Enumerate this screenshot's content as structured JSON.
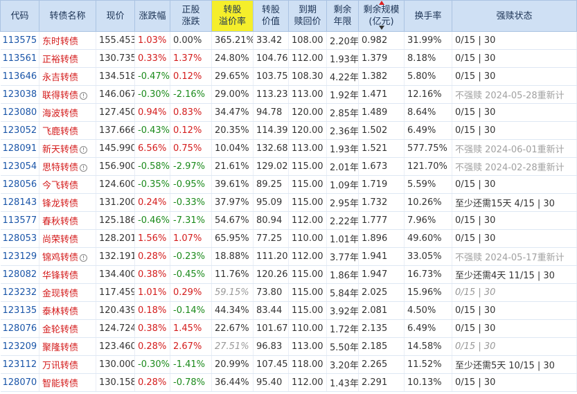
{
  "headers": {
    "code": "代码",
    "name": "转债名称",
    "price": "现价",
    "change": "涨跌幅",
    "stock_change": [
      "正股",
      "涨跌"
    ],
    "premium": [
      "转股",
      "溢价率"
    ],
    "conv_value": [
      "转股",
      "价值"
    ],
    "redeem_price": [
      "到期",
      "赎回价"
    ],
    "remaining_years": [
      "剩余",
      "年限"
    ],
    "remaining_scale": [
      "剩余规模",
      "(亿元)"
    ],
    "turnover": "换手率",
    "force_redeem": "强赎状态"
  },
  "rows": [
    {
      "code": "113575",
      "name": "东时转债",
      "info": false,
      "price": "155.453",
      "change": "1.03%",
      "cdir": "up",
      "stock": "0.00%",
      "sdir": "flat",
      "premium": "365.21%",
      "pit": false,
      "value": "33.42",
      "redeem": "108.00",
      "years": "2.20年",
      "scale": "0.982",
      "turnover": "31.99%",
      "status": "0/15 | 30",
      "status2": "",
      "sgray": false
    },
    {
      "code": "113561",
      "name": "正裕转债",
      "info": false,
      "price": "130.735",
      "change": "0.33%",
      "cdir": "up",
      "stock": "1.37%",
      "sdir": "up",
      "premium": "24.80%",
      "pit": false,
      "value": "104.76",
      "redeem": "112.00",
      "years": "1.93年",
      "scale": "1.379",
      "turnover": "8.18%",
      "status": "0/15 | 30",
      "status2": "",
      "sgray": false
    },
    {
      "code": "113646",
      "name": "永吉转债",
      "info": false,
      "price": "134.518",
      "change": "-0.47%",
      "cdir": "down",
      "stock": "0.12%",
      "sdir": "up",
      "premium": "29.65%",
      "pit": false,
      "value": "103.75",
      "redeem": "108.30",
      "years": "4.22年",
      "scale": "1.382",
      "turnover": "5.80%",
      "status": "0/15 | 30",
      "status2": "",
      "sgray": false
    },
    {
      "code": "123038",
      "name": "联得转债",
      "info": true,
      "price": "146.067",
      "change": "-0.30%",
      "cdir": "down",
      "stock": "-2.16%",
      "sdir": "down",
      "premium": "29.00%",
      "pit": false,
      "value": "113.23",
      "redeem": "113.00",
      "years": "1.92年",
      "scale": "1.471",
      "turnover": "12.16%",
      "status": "不强赎 2024-05-28重新计",
      "status2": "",
      "sgray": true
    },
    {
      "code": "123080",
      "name": "海波转债",
      "info": false,
      "price": "127.450",
      "change": "0.94%",
      "cdir": "up",
      "stock": "0.83%",
      "sdir": "up",
      "premium": "34.47%",
      "pit": false,
      "value": "94.78",
      "redeem": "120.00",
      "years": "2.85年",
      "scale": "1.489",
      "turnover": "8.64%",
      "status": "0/15 | 30",
      "status2": "",
      "sgray": false
    },
    {
      "code": "123052",
      "name": "飞鹿转债",
      "info": false,
      "price": "137.666",
      "change": "-0.43%",
      "cdir": "down",
      "stock": "0.12%",
      "sdir": "up",
      "premium": "20.35%",
      "pit": false,
      "value": "114.39",
      "redeem": "120.00",
      "years": "2.36年",
      "scale": "1.502",
      "turnover": "6.49%",
      "status": "0/15 | 30",
      "status2": "",
      "sgray": false
    },
    {
      "code": "128091",
      "name": "新天转债",
      "info": true,
      "price": "145.990",
      "change": "6.56%",
      "cdir": "up",
      "stock": "0.75%",
      "sdir": "up",
      "premium": "10.04%",
      "pit": false,
      "value": "132.68",
      "redeem": "113.00",
      "years": "1.93年",
      "scale": "1.521",
      "turnover": "577.75%",
      "status": "不强赎 2024-06-01重新计",
      "status2": "",
      "sgray": true
    },
    {
      "code": "123054",
      "name": "思特转债",
      "info": true,
      "price": "156.900",
      "change": "-0.58%",
      "cdir": "down",
      "stock": "-2.97%",
      "sdir": "down",
      "premium": "21.61%",
      "pit": false,
      "value": "129.02",
      "redeem": "115.00",
      "years": "2.01年",
      "scale": "1.673",
      "turnover": "121.70%",
      "status": "不强赎 2024-02-28重新计",
      "status2": "",
      "sgray": true
    },
    {
      "code": "128056",
      "name": "今飞转债",
      "info": false,
      "price": "124.600",
      "change": "-0.35%",
      "cdir": "down",
      "stock": "-0.95%",
      "sdir": "down",
      "premium": "39.61%",
      "pit": false,
      "value": "89.25",
      "redeem": "115.00",
      "years": "1.09年",
      "scale": "1.719",
      "turnover": "5.59%",
      "status": "0/15 | 30",
      "status2": "",
      "sgray": false
    },
    {
      "code": "128143",
      "name": "锋龙转债",
      "info": false,
      "price": "131.200",
      "change": "0.24%",
      "cdir": "up",
      "stock": "-0.33%",
      "sdir": "down",
      "premium": "37.97%",
      "pit": false,
      "value": "95.09",
      "redeem": "115.00",
      "years": "2.95年",
      "scale": "1.732",
      "turnover": "10.26%",
      "status": "至少还需15天",
      "status2": "4/15 | 30",
      "sgray": false
    },
    {
      "code": "113577",
      "name": "春秋转债",
      "info": false,
      "price": "125.186",
      "change": "-0.46%",
      "cdir": "down",
      "stock": "-7.31%",
      "sdir": "down",
      "premium": "54.67%",
      "pit": false,
      "value": "80.94",
      "redeem": "112.00",
      "years": "2.22年",
      "scale": "1.777",
      "turnover": "7.96%",
      "status": "0/15 | 30",
      "status2": "",
      "sgray": false
    },
    {
      "code": "128053",
      "name": "尚荣转债",
      "info": false,
      "price": "128.201",
      "change": "1.56%",
      "cdir": "up",
      "stock": "1.07%",
      "sdir": "up",
      "premium": "65.95%",
      "pit": false,
      "value": "77.25",
      "redeem": "110.00",
      "years": "1.01年",
      "scale": "1.896",
      "turnover": "49.60%",
      "status": "0/15 | 30",
      "status2": "",
      "sgray": false
    },
    {
      "code": "123129",
      "name": "锦鸡转债",
      "info": true,
      "price": "132.191",
      "change": "0.28%",
      "cdir": "up",
      "stock": "-0.23%",
      "sdir": "down",
      "premium": "18.88%",
      "pit": false,
      "value": "111.20",
      "redeem": "112.00",
      "years": "3.77年",
      "scale": "1.941",
      "turnover": "33.05%",
      "status": "不强赎 2024-05-17重新计",
      "status2": "",
      "sgray": true
    },
    {
      "code": "128082",
      "name": "华锋转债",
      "info": false,
      "price": "134.400",
      "change": "0.38%",
      "cdir": "up",
      "stock": "-0.45%",
      "sdir": "down",
      "premium": "11.76%",
      "pit": false,
      "value": "120.26",
      "redeem": "115.00",
      "years": "1.86年",
      "scale": "1.947",
      "turnover": "16.73%",
      "status": "至少还需4天",
      "status2": "11/15 | 30",
      "sgray": false
    },
    {
      "code": "123232",
      "name": "金现转债",
      "info": false,
      "price": "117.459",
      "change": "1.01%",
      "cdir": "up",
      "stock": "0.29%",
      "sdir": "up",
      "premium": "59.15%",
      "pit": true,
      "value": "73.80",
      "redeem": "115.00",
      "years": "5.84年",
      "scale": "2.025",
      "turnover": "15.96%",
      "status": "0/15 | 30",
      "status2": "",
      "sgray": "italic"
    },
    {
      "code": "123135",
      "name": "泰林转债",
      "info": false,
      "price": "120.439",
      "change": "0.18%",
      "cdir": "up",
      "stock": "-0.14%",
      "sdir": "down",
      "premium": "44.34%",
      "pit": false,
      "value": "83.44",
      "redeem": "115.00",
      "years": "3.92年",
      "scale": "2.081",
      "turnover": "4.50%",
      "status": "0/15 | 30",
      "status2": "",
      "sgray": false
    },
    {
      "code": "128076",
      "name": "金轮转债",
      "info": false,
      "price": "124.724",
      "change": "0.38%",
      "cdir": "up",
      "stock": "1.45%",
      "sdir": "up",
      "premium": "22.67%",
      "pit": false,
      "value": "101.67",
      "redeem": "110.00",
      "years": "1.72年",
      "scale": "2.135",
      "turnover": "6.49%",
      "status": "0/15 | 30",
      "status2": "",
      "sgray": false
    },
    {
      "code": "123209",
      "name": "聚隆转债",
      "info": false,
      "price": "123.460",
      "change": "0.28%",
      "cdir": "up",
      "stock": "2.67%",
      "sdir": "up",
      "premium": "27.51%",
      "pit": true,
      "value": "96.83",
      "redeem": "113.00",
      "years": "5.50年",
      "scale": "2.185",
      "turnover": "14.58%",
      "status": "0/15 | 30",
      "status2": "",
      "sgray": "italic"
    },
    {
      "code": "123112",
      "name": "万讯转债",
      "info": false,
      "price": "130.000",
      "change": "-0.30%",
      "cdir": "down",
      "stock": "-1.41%",
      "sdir": "down",
      "premium": "20.99%",
      "pit": false,
      "value": "107.45",
      "redeem": "118.00",
      "years": "3.20年",
      "scale": "2.265",
      "turnover": "11.52%",
      "status": "至少还需5天",
      "status2": "10/15 | 30",
      "sgray": false
    },
    {
      "code": "128070",
      "name": "智能转债",
      "info": false,
      "price": "130.158",
      "change": "0.28%",
      "cdir": "up",
      "stock": "-0.78%",
      "sdir": "down",
      "premium": "36.44%",
      "pit": false,
      "value": "95.40",
      "redeem": "112.00",
      "years": "1.43年",
      "scale": "2.291",
      "turnover": "10.13%",
      "status": "0/15 | 30",
      "status2": "",
      "sgray": false
    }
  ],
  "colors": {
    "up": "#d41c1c",
    "down": "#1b8a1b",
    "header_bg": "#cfe0f4",
    "highlight": "#f5ee2b",
    "code": "#1a55a8"
  }
}
